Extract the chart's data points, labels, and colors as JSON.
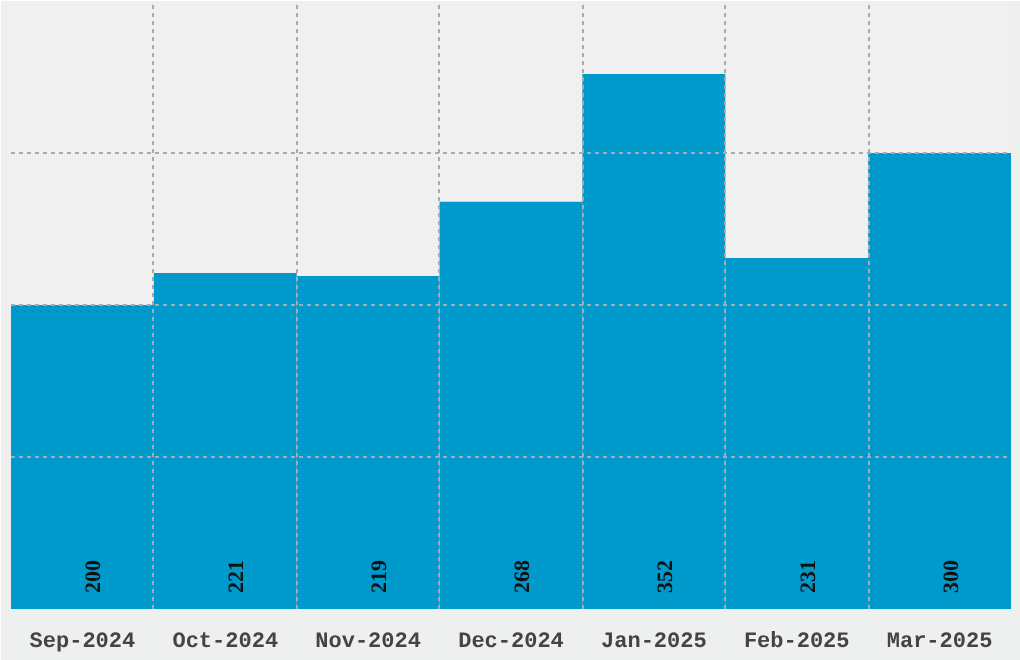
{
  "chart_data": {
    "type": "bar",
    "categories": [
      "Sep-2024",
      "Oct-2024",
      "Nov-2024",
      "Dec-2024",
      "Jan-2025",
      "Feb-2025",
      "Mar-2025"
    ],
    "values": [
      200,
      221,
      219,
      268,
      352,
      231,
      300
    ],
    "color": "#0099cc",
    "ylim": [
      0,
      400
    ],
    "yticks": [
      {
        "value": 100,
        "label": null
      },
      {
        "value": 200,
        "label": null
      },
      {
        "value": 300,
        "label": null
      }
    ],
    "tick_labels": "x",
    "grid": true,
    "data_labels": true
  }
}
